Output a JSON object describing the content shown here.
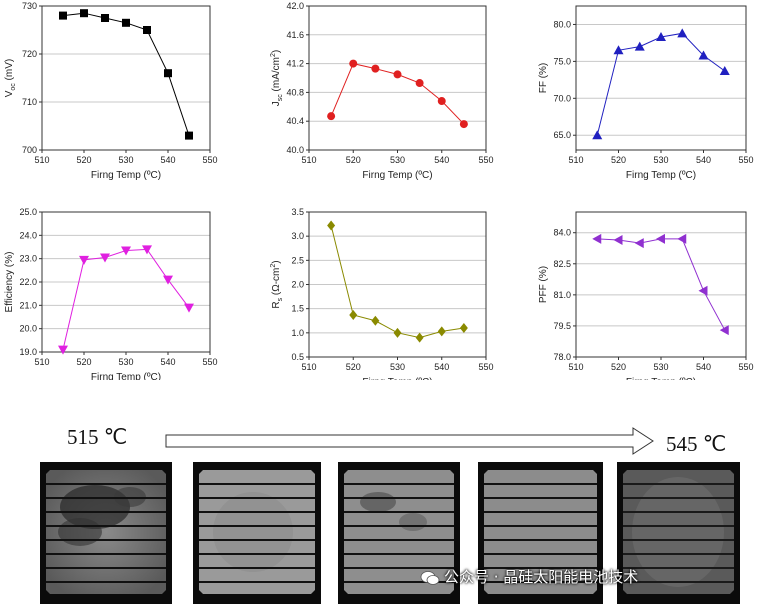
{
  "chart_data": [
    {
      "type": "line",
      "marker": "square",
      "color": "#000000",
      "x": [
        515,
        520,
        525,
        530,
        535,
        540,
        545
      ],
      "values": [
        728,
        728.5,
        727.5,
        726.5,
        725,
        716,
        703
      ],
      "xlabel": "Firng Temp (ºC)",
      "ylabel": "V",
      "ylabel_sub": "oc",
      "ylabel_after": " (mV)",
      "xlim": [
        510,
        550
      ],
      "ylim": [
        700,
        730
      ],
      "xticks": [
        510,
        520,
        530,
        540,
        550
      ],
      "yticks": [
        700,
        710,
        720,
        730
      ],
      "yfmt": 0,
      "grid": true
    },
    {
      "type": "line",
      "marker": "circle",
      "color": "#e02020",
      "x": [
        515,
        520,
        525,
        530,
        535,
        540,
        545
      ],
      "values": [
        40.47,
        41.2,
        41.13,
        41.05,
        40.93,
        40.68,
        40.36
      ],
      "xlabel": "Firng Temp (ºC)",
      "ylabel": "J",
      "ylabel_sub": "sc",
      "ylabel_after": " (mA/cm",
      "ylabel_sup": "2",
      "ylabel_end": ")",
      "xlim": [
        510,
        550
      ],
      "ylim": [
        40.0,
        42.0
      ],
      "xticks": [
        510,
        520,
        530,
        540,
        550
      ],
      "yticks": [
        40.0,
        40.4,
        40.8,
        41.2,
        41.6,
        42.0
      ],
      "yfmt": 1,
      "grid": true
    },
    {
      "type": "line",
      "marker": "triangle-up",
      "color": "#2020c0",
      "x": [
        515,
        520,
        525,
        530,
        535,
        540,
        545
      ],
      "values": [
        65.0,
        76.5,
        77.0,
        78.3,
        78.8,
        75.8,
        73.7
      ],
      "xlabel": "Firng Temp (ºC)",
      "ylabel": "FF (%)",
      "xlim": [
        510,
        550
      ],
      "ylim": [
        63.0,
        82.5
      ],
      "xticks": [
        510,
        520,
        530,
        540,
        550
      ],
      "yticks": [
        65.0,
        70.0,
        75.0,
        80.0
      ],
      "yfmt": 1,
      "grid": true
    },
    {
      "type": "line",
      "marker": "triangle-down",
      "color": "#e020e0",
      "x": [
        515,
        520,
        525,
        530,
        535,
        540,
        545
      ],
      "values": [
        19.1,
        22.95,
        23.05,
        23.35,
        23.4,
        22.1,
        20.9
      ],
      "xlabel": "Firng Temp (ºC)",
      "ylabel": "Efficiency  (%)",
      "xlim": [
        510,
        550
      ],
      "ylim": [
        19.0,
        25.0
      ],
      "xticks": [
        510,
        520,
        530,
        540,
        550
      ],
      "yticks": [
        19.0,
        20.0,
        21.0,
        22.0,
        23.0,
        24.0,
        25.0
      ],
      "yfmt": 1,
      "grid": true
    },
    {
      "type": "line",
      "marker": "diamond",
      "color": "#8a8a00",
      "x": [
        515,
        520,
        525,
        530,
        535,
        540,
        545
      ],
      "values": [
        3.22,
        1.37,
        1.25,
        1.0,
        0.9,
        1.03,
        1.1
      ],
      "xlabel": "Firng Temp (ºC)",
      "ylabel": "R",
      "ylabel_sub": "s",
      "ylabel_after": " (Ω-cm",
      "ylabel_sup": "2",
      "ylabel_end": ")",
      "xlim": [
        510,
        550
      ],
      "ylim": [
        0.5,
        3.5
      ],
      "xticks": [
        510,
        520,
        530,
        540,
        550
      ],
      "yticks": [
        0.5,
        1.0,
        1.5,
        2.0,
        2.5,
        3.0,
        3.5
      ],
      "yfmt": 1,
      "grid": true
    },
    {
      "type": "line",
      "marker": "triangle-left",
      "color": "#9030d0",
      "x": [
        515,
        520,
        525,
        530,
        535,
        540,
        545
      ],
      "values": [
        83.7,
        83.65,
        83.5,
        83.7,
        83.7,
        81.2,
        79.3
      ],
      "xlabel": "Firng Temp (ºC)",
      "ylabel": "PFF (%)",
      "xlim": [
        510,
        550
      ],
      "ylim": [
        78.0,
        85.0
      ],
      "xticks": [
        510,
        520,
        530,
        540,
        550
      ],
      "yticks": [
        78.0,
        79.5,
        81.0,
        82.5,
        84.0
      ],
      "yfmt": 1,
      "grid": true
    }
  ],
  "labels": {
    "start_temp": "515 ℃",
    "end_temp": "545 ℃"
  },
  "watermark": "公众号 · 晶硅太阳能电池技术"
}
